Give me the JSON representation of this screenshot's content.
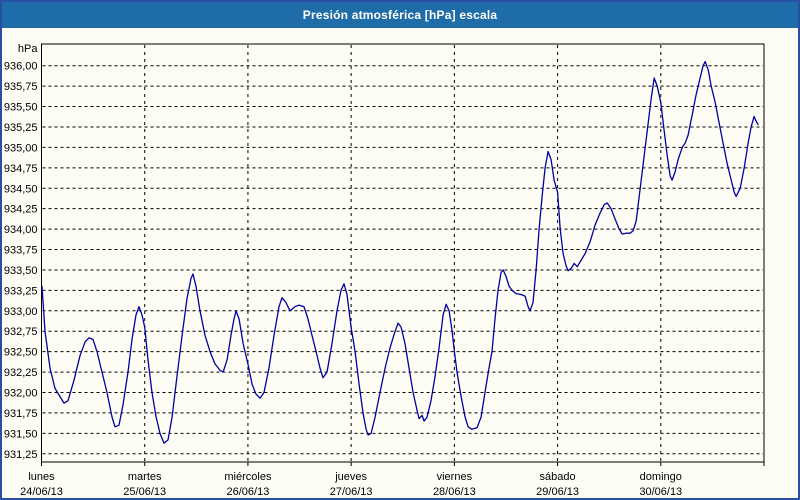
{
  "window": {
    "title": "Presión atmosférica [hPa] escala"
  },
  "colors": {
    "titlebar_bg": "#1f6da8",
    "frame_border": "#2a4fa2",
    "window_bg": "#fdfdf6",
    "plot_bg": "#fdfdf6",
    "grid": "#000000",
    "axis": "#000000",
    "text": "#000000",
    "line": "#0000a0"
  },
  "chart_data": {
    "type": "line",
    "title": "Presión atmosférica [hPa] escala",
    "grid": "dashed, horizontal at every 0.25 hPa, vertical at day boundaries",
    "legend": "none",
    "y_axis": {
      "unit_label": "hPa",
      "min": 931.25,
      "max": 936.0,
      "tick_step": 0.25,
      "ticks": [
        {
          "label": "936,00",
          "value": 936.0
        },
        {
          "label": "935,75",
          "value": 935.75
        },
        {
          "label": "935,50",
          "value": 935.5
        },
        {
          "label": "935,25",
          "value": 935.25
        },
        {
          "label": "935,00",
          "value": 935.0
        },
        {
          "label": "934,75",
          "value": 934.75
        },
        {
          "label": "934,50",
          "value": 934.5
        },
        {
          "label": "934,25",
          "value": 934.25
        },
        {
          "label": "934,00",
          "value": 934.0
        },
        {
          "label": "933,75",
          "value": 933.75
        },
        {
          "label": "933,50",
          "value": 933.5
        },
        {
          "label": "933,25",
          "value": 933.25
        },
        {
          "label": "933,00",
          "value": 933.0
        },
        {
          "label": "932,75",
          "value": 932.75
        },
        {
          "label": "932,50",
          "value": 932.5
        },
        {
          "label": "932,25",
          "value": 932.25
        },
        {
          "label": "932,00",
          "value": 932.0
        },
        {
          "label": "931,75",
          "value": 931.75
        },
        {
          "label": "931,50",
          "value": 931.5
        },
        {
          "label": "931,25",
          "value": 931.25
        }
      ]
    },
    "x_axis": {
      "span_days": 7,
      "days": [
        {
          "name": "lunes",
          "date": "24/06/13"
        },
        {
          "name": "martes",
          "date": "25/06/13"
        },
        {
          "name": "miércoles",
          "date": "26/06/13"
        },
        {
          "name": "jueves",
          "date": "27/06/13"
        },
        {
          "name": "viernes",
          "date": "28/06/13"
        },
        {
          "name": "sábado",
          "date": "29/06/13"
        },
        {
          "name": "domingo",
          "date": "30/06/13"
        }
      ]
    },
    "series": [
      {
        "name": "Presión atmosférica [hPa]",
        "color": "#0000a0",
        "x_unit": "days from start (lunes 24/06/13 00:00)",
        "y_unit": "hPa",
        "points": [
          [
            0.005,
            933.3
          ],
          [
            0.034,
            932.75
          ],
          [
            0.082,
            932.3
          ],
          [
            0.131,
            932.05
          ],
          [
            0.179,
            931.95
          ],
          [
            0.218,
            931.87
          ],
          [
            0.257,
            931.9
          ],
          [
            0.315,
            932.15
          ],
          [
            0.373,
            932.45
          ],
          [
            0.422,
            932.62
          ],
          [
            0.46,
            932.67
          ],
          [
            0.499,
            932.65
          ],
          [
            0.538,
            932.5
          ],
          [
            0.586,
            932.25
          ],
          [
            0.635,
            932.0
          ],
          [
            0.683,
            931.7
          ],
          [
            0.712,
            931.58
          ],
          [
            0.751,
            931.6
          ],
          [
            0.79,
            931.85
          ],
          [
            0.838,
            932.25
          ],
          [
            0.877,
            932.65
          ],
          [
            0.916,
            932.95
          ],
          [
            0.945,
            933.05
          ],
          [
            0.974,
            932.95
          ],
          [
            1.0,
            932.8
          ],
          [
            1.032,
            932.4
          ],
          [
            1.071,
            932.0
          ],
          [
            1.11,
            931.7
          ],
          [
            1.148,
            931.5
          ],
          [
            1.187,
            931.38
          ],
          [
            1.226,
            931.42
          ],
          [
            1.265,
            931.7
          ],
          [
            1.313,
            932.2
          ],
          [
            1.362,
            932.7
          ],
          [
            1.41,
            933.15
          ],
          [
            1.449,
            933.4
          ],
          [
            1.468,
            933.45
          ],
          [
            1.497,
            933.3
          ],
          [
            1.536,
            933.0
          ],
          [
            1.584,
            932.7
          ],
          [
            1.633,
            932.5
          ],
          [
            1.681,
            932.35
          ],
          [
            1.73,
            932.27
          ],
          [
            1.759,
            932.25
          ],
          [
            1.798,
            932.4
          ],
          [
            1.836,
            932.7
          ],
          [
            1.865,
            932.9
          ],
          [
            1.885,
            933.0
          ],
          [
            1.914,
            932.9
          ],
          [
            1.953,
            932.6
          ],
          [
            2.0,
            932.35
          ],
          [
            2.04,
            932.1
          ],
          [
            2.078,
            931.98
          ],
          [
            2.117,
            931.93
          ],
          [
            2.156,
            932.0
          ],
          [
            2.204,
            932.3
          ],
          [
            2.253,
            932.7
          ],
          [
            2.301,
            933.05
          ],
          [
            2.33,
            933.16
          ],
          [
            2.369,
            933.1
          ],
          [
            2.408,
            933.0
          ],
          [
            2.456,
            933.05
          ],
          [
            2.495,
            933.07
          ],
          [
            2.543,
            933.05
          ],
          [
            2.582,
            932.9
          ],
          [
            2.621,
            932.7
          ],
          [
            2.66,
            932.5
          ],
          [
            2.698,
            932.3
          ],
          [
            2.727,
            932.18
          ],
          [
            2.766,
            932.25
          ],
          [
            2.815,
            932.6
          ],
          [
            2.863,
            933.0
          ],
          [
            2.902,
            933.25
          ],
          [
            2.931,
            933.33
          ],
          [
            2.96,
            933.2
          ],
          [
            3.0,
            932.8
          ],
          [
            3.038,
            932.5
          ],
          [
            3.077,
            932.1
          ],
          [
            3.115,
            931.75
          ],
          [
            3.145,
            931.55
          ],
          [
            3.164,
            931.48
          ],
          [
            3.193,
            931.5
          ],
          [
            3.232,
            931.7
          ],
          [
            3.28,
            932.0
          ],
          [
            3.329,
            932.3
          ],
          [
            3.377,
            932.55
          ],
          [
            3.426,
            932.75
          ],
          [
            3.455,
            932.85
          ],
          [
            3.484,
            932.8
          ],
          [
            3.522,
            932.6
          ],
          [
            3.561,
            932.3
          ],
          [
            3.6,
            932.0
          ],
          [
            3.639,
            931.78
          ],
          [
            3.658,
            931.68
          ],
          [
            3.687,
            931.72
          ],
          [
            3.707,
            931.65
          ],
          [
            3.736,
            931.7
          ],
          [
            3.774,
            931.9
          ],
          [
            3.813,
            932.2
          ],
          [
            3.852,
            932.55
          ],
          [
            3.891,
            932.95
          ],
          [
            3.92,
            933.08
          ],
          [
            3.949,
            933.0
          ],
          [
            3.978,
            932.75
          ],
          [
            4.0,
            932.5
          ],
          [
            4.026,
            932.25
          ],
          [
            4.065,
            931.95
          ],
          [
            4.104,
            931.7
          ],
          [
            4.133,
            931.58
          ],
          [
            4.171,
            931.55
          ],
          [
            4.22,
            931.57
          ],
          [
            4.259,
            931.7
          ],
          [
            4.297,
            932.0
          ],
          [
            4.336,
            932.3
          ],
          [
            4.365,
            932.5
          ],
          [
            4.394,
            932.9
          ],
          [
            4.423,
            933.25
          ],
          [
            4.453,
            933.47
          ],
          [
            4.472,
            933.5
          ],
          [
            4.501,
            933.42
          ],
          [
            4.53,
            933.3
          ],
          [
            4.559,
            933.25
          ],
          [
            4.598,
            933.21
          ],
          [
            4.646,
            933.2
          ],
          [
            4.685,
            933.18
          ],
          [
            4.714,
            933.05
          ],
          [
            4.733,
            933.0
          ],
          [
            4.762,
            933.1
          ],
          [
            4.792,
            933.5
          ],
          [
            4.821,
            934.0
          ],
          [
            4.85,
            934.4
          ],
          [
            4.879,
            934.75
          ],
          [
            4.908,
            934.95
          ],
          [
            4.937,
            934.85
          ],
          [
            4.966,
            934.6
          ],
          [
            5.0,
            934.45
          ],
          [
            5.025,
            934.0
          ],
          [
            5.054,
            933.7
          ],
          [
            5.083,
            933.55
          ],
          [
            5.103,
            933.49
          ],
          [
            5.132,
            933.52
          ],
          [
            5.161,
            933.58
          ],
          [
            5.19,
            933.54
          ],
          [
            5.229,
            933.62
          ],
          [
            5.267,
            933.7
          ],
          [
            5.316,
            933.85
          ],
          [
            5.364,
            934.05
          ],
          [
            5.413,
            934.2
          ],
          [
            5.452,
            934.3
          ],
          [
            5.481,
            934.32
          ],
          [
            5.519,
            934.25
          ],
          [
            5.558,
            934.12
          ],
          [
            5.597,
            934.0
          ],
          [
            5.626,
            933.94
          ],
          [
            5.665,
            933.95
          ],
          [
            5.703,
            933.95
          ],
          [
            5.732,
            933.98
          ],
          [
            5.762,
            934.1
          ],
          [
            5.791,
            934.4
          ],
          [
            5.82,
            934.7
          ],
          [
            5.849,
            935.0
          ],
          [
            5.878,
            935.3
          ],
          [
            5.907,
            935.6
          ],
          [
            5.936,
            935.85
          ],
          [
            5.965,
            935.75
          ],
          [
            6.0,
            935.55
          ],
          [
            6.033,
            935.2
          ],
          [
            6.062,
            934.9
          ],
          [
            6.091,
            934.65
          ],
          [
            6.11,
            934.6
          ],
          [
            6.139,
            934.7
          ],
          [
            6.168,
            934.85
          ],
          [
            6.207,
            935.0
          ],
          [
            6.236,
            935.05
          ],
          [
            6.265,
            935.15
          ],
          [
            6.304,
            935.4
          ],
          [
            6.343,
            935.65
          ],
          [
            6.381,
            935.85
          ],
          [
            6.41,
            936.0
          ],
          [
            6.43,
            936.05
          ],
          [
            6.459,
            935.95
          ],
          [
            6.488,
            935.75
          ],
          [
            6.527,
            935.55
          ],
          [
            6.565,
            935.3
          ],
          [
            6.604,
            935.05
          ],
          [
            6.643,
            934.8
          ],
          [
            6.682,
            934.6
          ],
          [
            6.711,
            934.45
          ],
          [
            6.73,
            934.4
          ],
          [
            6.769,
            934.5
          ],
          [
            6.808,
            934.75
          ],
          [
            6.846,
            935.05
          ],
          [
            6.875,
            935.25
          ],
          [
            6.904,
            935.38
          ],
          [
            6.924,
            935.32
          ],
          [
            6.943,
            935.28
          ]
        ]
      }
    ]
  }
}
